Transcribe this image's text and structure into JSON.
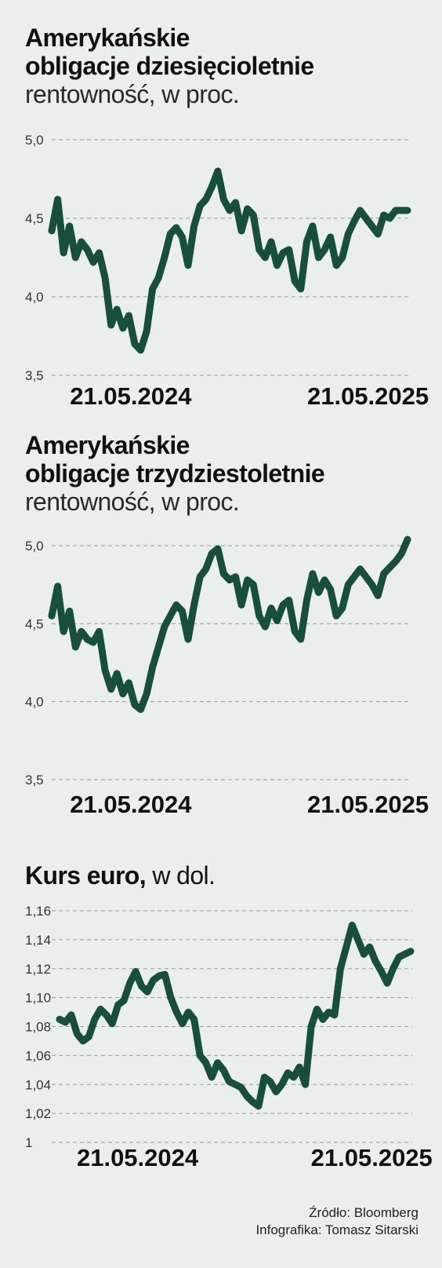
{
  "charts": [
    {
      "title": "Amerykańskie",
      "title_line2": "obligacje dziesięcioletnie",
      "subtitle": "rentowność, w proc."
    },
    {
      "title": "Amerykańskie",
      "title_line2": "obligacje trzydziestoletnie",
      "subtitle": "rentowność, w proc."
    },
    {
      "title": "Kurs euro,",
      "subtitle": " w dol."
    }
  ],
  "footer": {
    "source": "Źródło: Bloomberg",
    "credit": "Infografika: Tomasz Sitarski"
  },
  "colors": {
    "line": "#174f3b",
    "grid": "#9a9a9a",
    "background": "#eaefe9"
  },
  "chart_data": [
    {
      "type": "line",
      "title": "Amerykańskie obligacje dziesięcioletnie",
      "ylabel": "rentowność, w proc.",
      "ylim": [
        3.5,
        5.0
      ],
      "yticks": [
        "5,0",
        "4,5",
        "4,0",
        "3,5"
      ],
      "ytick_values": [
        5.0,
        4.5,
        4.0,
        3.5
      ],
      "xtick_labels": [
        "21.05.2024",
        "21.05.2025"
      ],
      "xtick_positions": [
        4,
        16
      ],
      "grid": true,
      "series": [
        {
          "x": [
            0,
            0.3,
            0.6,
            0.9,
            1.2,
            1.5,
            1.8,
            2.1,
            2.4,
            2.7,
            3.0,
            3.3,
            3.6,
            3.9,
            4.2,
            4.5,
            4.8,
            5.1,
            5.4,
            5.7,
            6.0,
            6.3,
            6.6,
            6.9,
            7.2,
            7.5,
            7.8,
            8.1,
            8.4,
            8.7,
            9.0,
            9.3,
            9.6,
            9.9,
            10.2,
            10.5,
            10.8,
            11.1,
            11.4,
            11.7,
            12.0,
            12.3,
            12.6,
            12.9,
            13.2,
            13.5,
            13.8,
            14.1,
            14.4,
            14.7,
            15.0,
            15.3,
            15.6,
            15.9,
            16.2,
            16.5,
            16.8,
            17.1,
            17.4,
            17.7,
            18.0
          ],
          "values": [
            4.42,
            4.62,
            4.28,
            4.45,
            4.25,
            4.35,
            4.3,
            4.22,
            4.28,
            4.12,
            3.82,
            3.92,
            3.8,
            3.88,
            3.7,
            3.66,
            3.78,
            4.05,
            4.12,
            4.25,
            4.4,
            4.44,
            4.38,
            4.2,
            4.45,
            4.58,
            4.62,
            4.7,
            4.8,
            4.62,
            4.55,
            4.6,
            4.42,
            4.56,
            4.52,
            4.3,
            4.25,
            4.35,
            4.2,
            4.28,
            4.3,
            4.1,
            4.05,
            4.35,
            4.45,
            4.25,
            4.3,
            4.38,
            4.2,
            4.25,
            4.4,
            4.48,
            4.55,
            4.5,
            4.45,
            4.4,
            4.52,
            4.5,
            4.55,
            4.55,
            4.55
          ]
        }
      ]
    },
    {
      "type": "line",
      "title": "Amerykańskie obligacje trzydziestoletnie",
      "ylabel": "rentowność, w proc.",
      "ylim": [
        3.5,
        5.0
      ],
      "yticks": [
        "5,0",
        "4,5",
        "4,0",
        "3,5"
      ],
      "ytick_values": [
        5.0,
        4.5,
        4.0,
        3.5
      ],
      "xtick_labels": [
        "21.05.2024",
        "21.05.2025"
      ],
      "xtick_positions": [
        4,
        16
      ],
      "grid": true,
      "series": [
        {
          "x": [
            0,
            0.3,
            0.6,
            0.9,
            1.2,
            1.5,
            1.8,
            2.1,
            2.4,
            2.7,
            3.0,
            3.3,
            3.6,
            3.9,
            4.2,
            4.5,
            4.8,
            5.1,
            5.4,
            5.7,
            6.0,
            6.3,
            6.6,
            6.9,
            7.2,
            7.5,
            7.8,
            8.1,
            8.4,
            8.7,
            9.0,
            9.3,
            9.6,
            9.9,
            10.2,
            10.5,
            10.8,
            11.1,
            11.4,
            11.7,
            12.0,
            12.3,
            12.6,
            12.9,
            13.2,
            13.5,
            13.8,
            14.1,
            14.4,
            14.7,
            15.0,
            15.3,
            15.6,
            15.9,
            16.2,
            16.5,
            16.8,
            17.1,
            17.4,
            17.7,
            18.0
          ],
          "values": [
            4.55,
            4.74,
            4.45,
            4.58,
            4.35,
            4.45,
            4.4,
            4.38,
            4.45,
            4.2,
            4.08,
            4.18,
            4.05,
            4.12,
            3.98,
            3.95,
            4.05,
            4.22,
            4.35,
            4.48,
            4.55,
            4.62,
            4.58,
            4.4,
            4.62,
            4.8,
            4.85,
            4.95,
            4.98,
            4.82,
            4.78,
            4.8,
            4.62,
            4.78,
            4.75,
            4.55,
            4.48,
            4.6,
            4.52,
            4.62,
            4.65,
            4.45,
            4.4,
            4.65,
            4.82,
            4.7,
            4.78,
            4.72,
            4.55,
            4.6,
            4.75,
            4.8,
            4.85,
            4.8,
            4.75,
            4.68,
            4.82,
            4.86,
            4.9,
            4.95,
            5.04
          ]
        }
      ]
    },
    {
      "type": "line",
      "title": "Kurs euro",
      "ylabel": "w dol.",
      "ylim": [
        1.0,
        1.16
      ],
      "yticks": [
        "1,16",
        "1,14",
        "1,12",
        "1,10",
        "1,08",
        "1,06",
        "1,04",
        "1,02",
        "1"
      ],
      "ytick_values": [
        1.16,
        1.14,
        1.12,
        1.1,
        1.08,
        1.06,
        1.04,
        1.02,
        1.0
      ],
      "xtick_labels": [
        "21.05.2024",
        "21.05.2025"
      ],
      "xtick_positions": [
        4,
        16
      ],
      "grid": true,
      "series": [
        {
          "x": [
            0,
            0.3,
            0.6,
            0.9,
            1.2,
            1.5,
            1.8,
            2.1,
            2.4,
            2.7,
            3.0,
            3.3,
            3.6,
            3.9,
            4.2,
            4.5,
            4.8,
            5.1,
            5.4,
            5.7,
            6.0,
            6.3,
            6.6,
            6.9,
            7.2,
            7.5,
            7.8,
            8.1,
            8.4,
            8.7,
            9.0,
            9.3,
            9.6,
            9.9,
            10.2,
            10.5,
            10.8,
            11.1,
            11.4,
            11.7,
            12.0,
            12.3,
            12.6,
            12.9,
            13.2,
            13.5,
            13.8,
            14.1,
            14.4,
            14.7,
            15.0,
            15.3,
            15.6,
            15.9,
            16.2,
            16.5,
            16.8,
            17.1,
            17.4,
            17.7,
            18.0
          ],
          "values": [
            1.085,
            1.083,
            1.088,
            1.075,
            1.07,
            1.073,
            1.085,
            1.092,
            1.088,
            1.082,
            1.095,
            1.098,
            1.11,
            1.118,
            1.108,
            1.104,
            1.112,
            1.115,
            1.116,
            1.1,
            1.09,
            1.082,
            1.09,
            1.085,
            1.06,
            1.055,
            1.045,
            1.055,
            1.05,
            1.042,
            1.04,
            1.038,
            1.032,
            1.028,
            1.025,
            1.045,
            1.042,
            1.035,
            1.04,
            1.048,
            1.045,
            1.052,
            1.04,
            1.08,
            1.092,
            1.085,
            1.09,
            1.088,
            1.12,
            1.135,
            1.15,
            1.14,
            1.13,
            1.135,
            1.125,
            1.118,
            1.11,
            1.12,
            1.128,
            1.13,
            1.132
          ]
        }
      ]
    }
  ]
}
